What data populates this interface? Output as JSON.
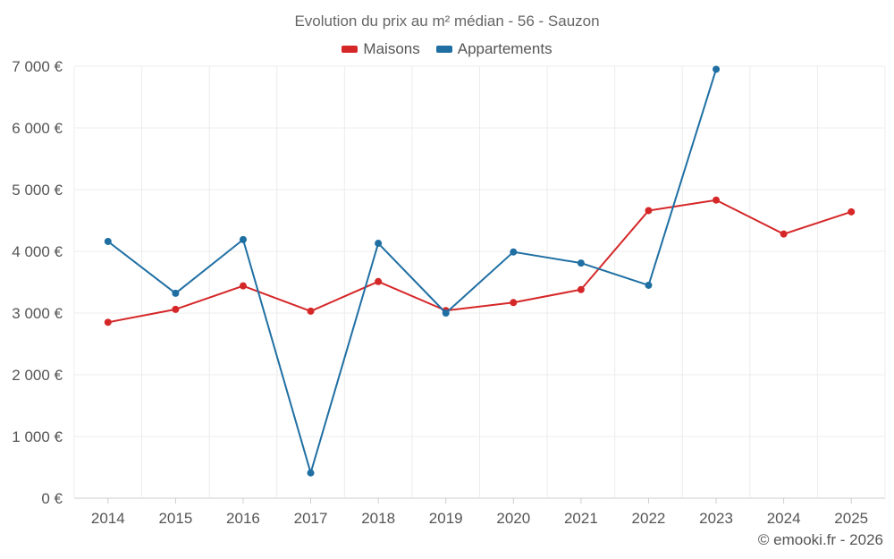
{
  "chart_data": {
    "type": "line",
    "title": "Evolution du prix au m² médian - 56 - Sauzon",
    "categories": [
      "2014",
      "2015",
      "2016",
      "2017",
      "2018",
      "2019",
      "2020",
      "2021",
      "2022",
      "2023",
      "2024",
      "2025"
    ],
    "series": [
      {
        "name": "Maisons",
        "color": "#d62728",
        "values": [
          2850,
          3060,
          3440,
          3030,
          3510,
          3040,
          3170,
          3380,
          4660,
          4830,
          4280,
          4640
        ]
      },
      {
        "name": "Appartements",
        "color": "#1f6fa3",
        "values": [
          4160,
          3320,
          4190,
          410,
          4130,
          3000,
          3990,
          3810,
          3450,
          6950,
          null,
          null
        ]
      }
    ],
    "ylim": [
      0,
      7000
    ],
    "yticks": [
      0,
      1000,
      2000,
      3000,
      4000,
      5000,
      6000,
      7000
    ],
    "ytick_labels": [
      "0 €",
      "1 000 €",
      "2 000 €",
      "3 000 €",
      "4 000 €",
      "5 000 €",
      "6 000 €",
      "7 000 €"
    ],
    "xlabel": "",
    "ylabel": "",
    "grid": true,
    "legend_position": "top-center"
  },
  "credit": "© emooki.fr - 2026"
}
